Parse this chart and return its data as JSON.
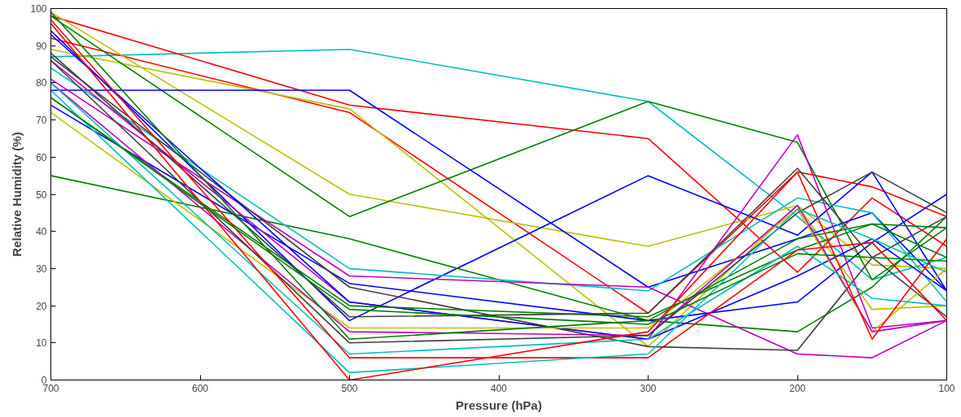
{
  "chart_data": {
    "type": "line",
    "xlabel": "Pressure (hPa)",
    "ylabel": "Relative Humidity (%)",
    "x": [
      700,
      500,
      300,
      200,
      150,
      100
    ],
    "xlim": [
      700,
      100
    ],
    "ylim": [
      0,
      100
    ],
    "xticks": [
      700,
      600,
      500,
      400,
      300,
      200,
      100
    ],
    "yticks": [
      0,
      10,
      20,
      30,
      40,
      50,
      60,
      70,
      80,
      90,
      100
    ],
    "grid": false,
    "series": [
      {
        "color": "#00bfbf",
        "values": [
          87,
          89,
          75,
          44,
          27,
          33
        ]
      },
      {
        "color": "#ff0000",
        "values": [
          98,
          74,
          65,
          29,
          49,
          36
        ]
      },
      {
        "color": "#ff0000",
        "values": [
          92,
          72,
          18,
          56,
          52,
          44
        ]
      },
      {
        "color": "#bfbf00",
        "values": [
          89,
          73,
          9,
          47,
          19,
          20
        ]
      },
      {
        "color": "#bfbf00",
        "values": [
          99,
          50,
          36,
          47,
          31,
          30
        ]
      },
      {
        "color": "#008000",
        "values": [
          98,
          44,
          75,
          64,
          27,
          41
        ]
      },
      {
        "color": "#0000ff",
        "values": [
          78,
          78,
          25,
          38,
          45,
          24
        ]
      },
      {
        "color": "#0000ff",
        "values": [
          94,
          16,
          55,
          39,
          56,
          24
        ]
      },
      {
        "color": "#008000",
        "values": [
          55,
          38,
          16,
          13,
          25,
          44
        ]
      },
      {
        "color": "#00bfbf",
        "values": [
          84,
          30,
          24,
          49,
          45,
          21
        ]
      },
      {
        "color": "#bf00bf",
        "values": [
          81,
          28,
          25,
          7,
          6,
          16
        ]
      },
      {
        "color": "#0000ff",
        "values": [
          74,
          26,
          16,
          21,
          37,
          50
        ]
      },
      {
        "color": "#404040",
        "values": [
          87,
          25,
          9,
          8,
          33,
          44
        ]
      },
      {
        "color": "#bf00bf",
        "values": [
          86,
          21,
          11,
          66,
          14,
          16
        ]
      },
      {
        "color": "#0000ff",
        "values": [
          93,
          21,
          11,
          28,
          38,
          24
        ]
      },
      {
        "color": "#008000",
        "values": [
          76,
          20,
          17,
          35,
          42,
          41
        ]
      },
      {
        "color": "#404040",
        "values": [
          88,
          17,
          18,
          57,
          33,
          17
        ]
      },
      {
        "color": "#bfbf00",
        "values": [
          72,
          14,
          14,
          46,
          13,
          30
        ]
      },
      {
        "color": "#bf00bf",
        "values": [
          80,
          13,
          12,
          47,
          13,
          16
        ]
      },
      {
        "color": "#008000",
        "values": [
          99,
          11,
          16,
          38,
          42,
          33
        ]
      },
      {
        "color": "#404040",
        "values": [
          86,
          10,
          12,
          45,
          56,
          45
        ]
      },
      {
        "color": "#00bfbf",
        "values": [
          80,
          7,
          11,
          36,
          22,
          20
        ]
      },
      {
        "color": "#ff0000",
        "values": [
          97,
          6,
          6,
          35,
          37,
          16
        ]
      },
      {
        "color": "#00bfbf",
        "values": [
          78,
          2,
          7,
          46,
          38,
          29
        ]
      },
      {
        "color": "#ff0000",
        "values": [
          96,
          0,
          13,
          56,
          11,
          38
        ]
      },
      {
        "color": "#008000",
        "values": [
          76,
          19,
          15,
          34,
          33,
          32
        ]
      }
    ]
  }
}
